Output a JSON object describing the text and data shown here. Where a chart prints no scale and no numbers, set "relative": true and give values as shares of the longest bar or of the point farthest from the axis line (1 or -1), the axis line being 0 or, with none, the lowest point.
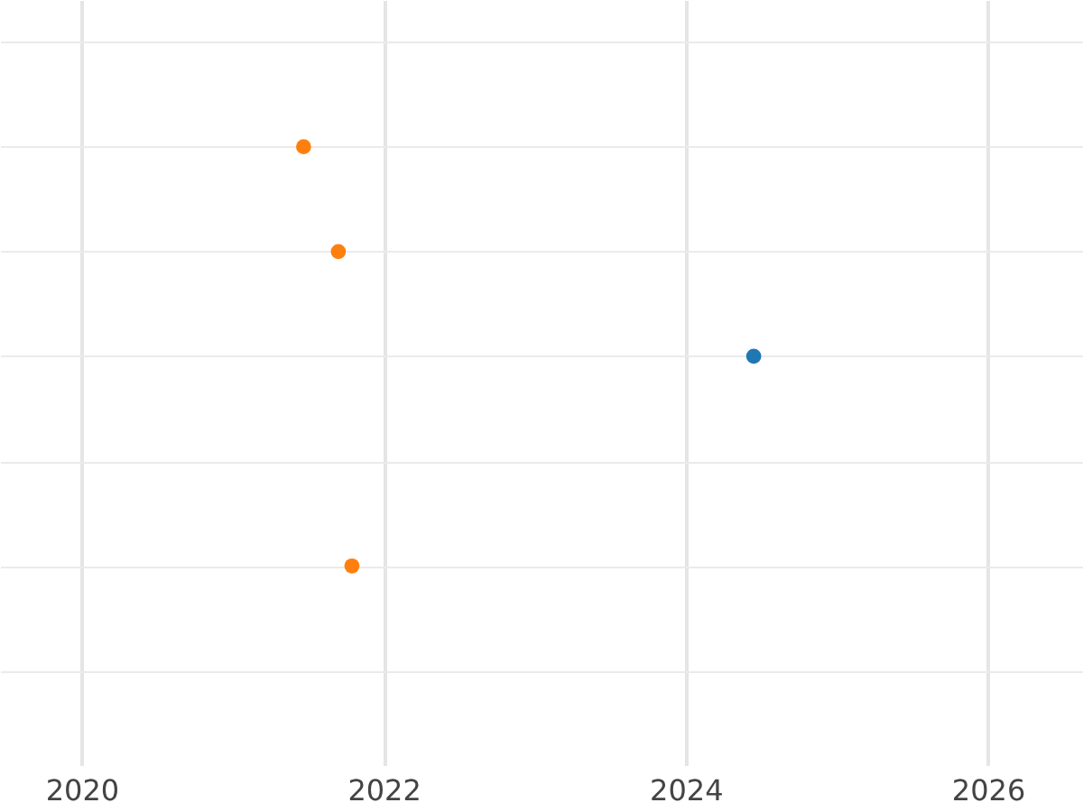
{
  "chart_data": {
    "type": "scatter",
    "relative": true,
    "xlim": [
      2019.46,
      2026.63
    ],
    "xticks": [
      2020,
      2022,
      2024,
      2026
    ],
    "series": [
      {
        "color": "#ff7f0e",
        "x": [
          2021.47,
          2021.7,
          2021.79
        ],
        "values": [
          1,
          0.75,
          0
        ]
      },
      {
        "color": "#1f77b4",
        "x": [
          2024.45
        ],
        "values": [
          0.5
        ]
      }
    ],
    "grid": true,
    "marker": "circle"
  }
}
